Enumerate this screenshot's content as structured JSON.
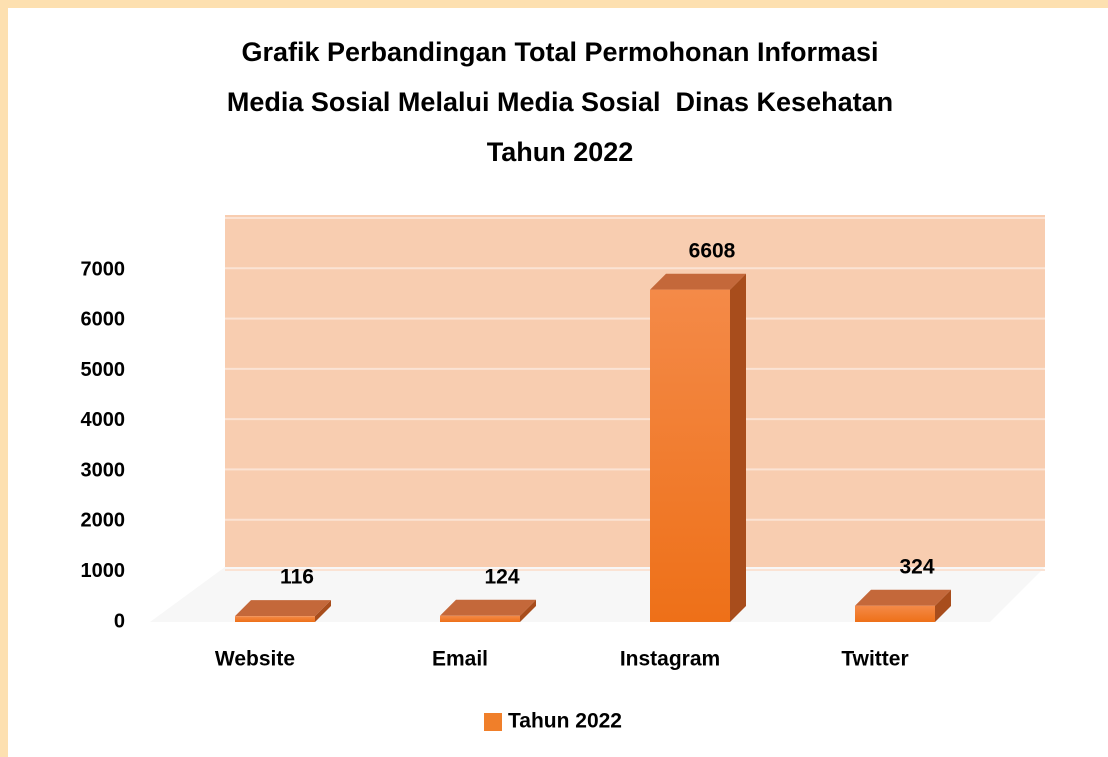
{
  "chart_data": {
    "type": "bar3d",
    "title": [
      "Grafik Perbandingan Total Permohonan Informasi",
      "Media Sosial Melalui Media Sosial  Dinas Kesehatan",
      "Tahun 2022"
    ],
    "categories": [
      "Website",
      "Email",
      "Instagram",
      "Twitter"
    ],
    "series": [
      {
        "name": "Tahun 2022",
        "color": "#f07f2a",
        "values": [
          116,
          124,
          6608,
          324
        ]
      }
    ],
    "ylim": [
      0,
      7000
    ],
    "yticks": [
      0,
      1000,
      2000,
      3000,
      4000,
      5000,
      6000,
      7000
    ],
    "legend": "bottom"
  }
}
